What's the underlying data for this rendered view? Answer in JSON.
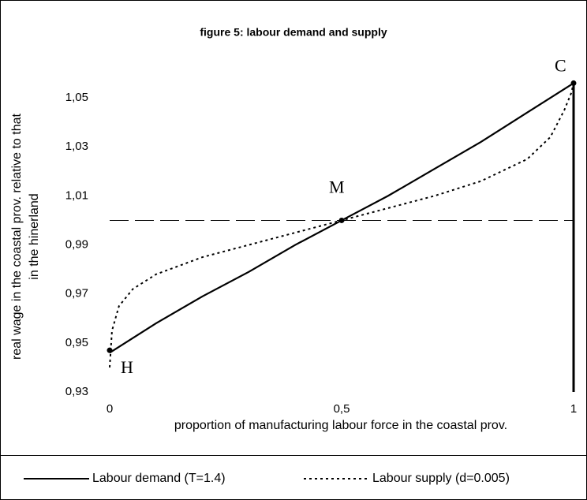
{
  "chart_data": {
    "type": "line",
    "title": "figure 5: labour demand and supply",
    "xlabel": "proportion of manufacturing labour force in the coastal prov.",
    "ylabel": [
      "real wage in the coastal prov. relative to that",
      "in the hinerland"
    ],
    "xlim": [
      0,
      1
    ],
    "ylim": [
      0.93,
      1.06
    ],
    "xticks": [
      0,
      {
        "value": 0.5,
        "label": "0,5"
      },
      1
    ],
    "yticks": [
      {
        "value": 0.93,
        "label": "0,93"
      },
      {
        "value": 0.95,
        "label": "0,95"
      },
      {
        "value": 0.97,
        "label": "0,97"
      },
      {
        "value": 0.99,
        "label": "0,99"
      },
      {
        "value": 1.01,
        "label": "1,01"
      },
      {
        "value": 1.03,
        "label": "1,03"
      },
      {
        "value": 1.05,
        "label": "1,05"
      }
    ],
    "hline": 1,
    "series": [
      {
        "name": "Labour demand (T=1.4)",
        "color": "#000000",
        "style": "solid",
        "x": [
          0,
          0.1,
          0.2,
          0.3,
          0.4,
          0.5,
          0.6,
          0.7,
          0.8,
          0.9,
          1
        ],
        "values": [
          0.946,
          0.958,
          0.969,
          0.979,
          0.99,
          1.0,
          1.01,
          1.021,
          1.032,
          1.044,
          1.056
        ]
      },
      {
        "name": "Labour supply (d=0.005)",
        "color": "#000000",
        "style": "dotted",
        "x": [
          0,
          0.005,
          0.02,
          0.05,
          0.1,
          0.2,
          0.3,
          0.4,
          0.5,
          0.6,
          0.7,
          0.8,
          0.9,
          0.95,
          0.98,
          0.995,
          1
        ],
        "values": [
          0.94,
          0.955,
          0.965,
          0.972,
          0.978,
          0.985,
          0.99,
          0.995,
          1.0,
          1.005,
          1.01,
          1.016,
          1.025,
          1.034,
          1.045,
          1.052,
          1.056
        ]
      }
    ],
    "points": [
      {
        "label": "H",
        "x": 0,
        "y": 0.947
      },
      {
        "label": "M",
        "x": 0.5,
        "y": 1.0
      },
      {
        "label": "C",
        "x": 1,
        "y": 1.056
      }
    ]
  }
}
